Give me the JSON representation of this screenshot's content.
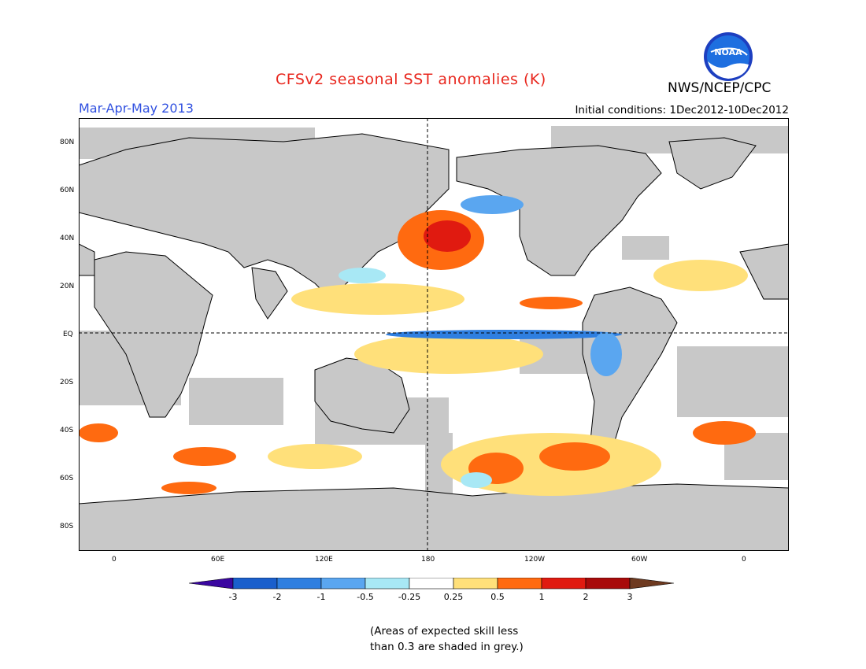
{
  "header": {
    "title": "CFSv2 seasonal SST anomalies (K)",
    "agency": "NWS/NCEP/CPC",
    "logo_text": "NOAA",
    "season": "Mar-Apr-May 2013",
    "initial_conditions": "Initial conditions: 1Dec2012-10Dec2012"
  },
  "map": {
    "lat_labels": [
      "80N",
      "60N",
      "40N",
      "20N",
      "EQ",
      "20S",
      "40S",
      "60S",
      "80S"
    ],
    "lon_labels": [
      "0",
      "60E",
      "120E",
      "180",
      "120W",
      "60W",
      "0"
    ],
    "land_color": "#c8c8c8",
    "ocean_color": "#ffffff"
  },
  "colorbar": {
    "labels": [
      "-3",
      "-2",
      "-1",
      "-0.5",
      "-0.25",
      "0.25",
      "0.5",
      "1",
      "2",
      "3"
    ],
    "colors": [
      "#3a06a0",
      "#1a5fcc",
      "#2f7fe0",
      "#5aa6f0",
      "#a8e8f5",
      "#ffffff",
      "#ffe07a",
      "#ff6a10",
      "#e01a10",
      "#a80a0a",
      "#6e3a20"
    ]
  },
  "footnote": {
    "line1": "(Areas of expected skill less",
    "line2": "than 0.3 are shaded in grey.)"
  }
}
